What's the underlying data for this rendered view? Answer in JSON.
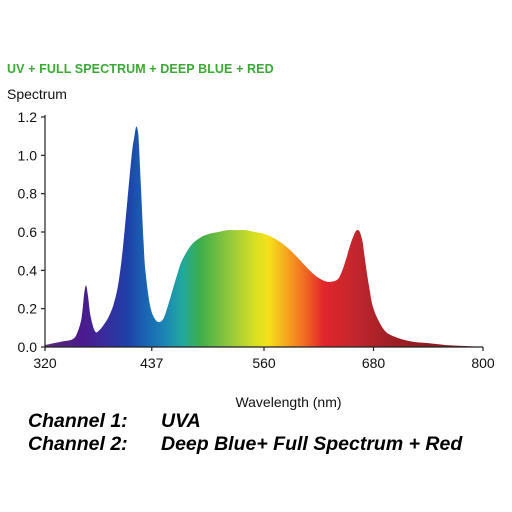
{
  "header": {
    "title": "UV + FULL SPECTRUM + DEEP BLUE + RED",
    "title_color": "#3aaa35"
  },
  "channels": [
    {
      "key": "Channel 1:",
      "value": "UVA"
    },
    {
      "key": "Channel 2:",
      "value": "Deep Blue+ Full Spectrum + Red"
    }
  ],
  "chart_data": {
    "type": "area",
    "title": "UV + FULL SPECTRUM + DEEP BLUE + RED",
    "xlabel": "Wavelength (nm)",
    "ylabel": "Spectrum",
    "xlim": [
      320,
      800
    ],
    "ylim": [
      0,
      1.2
    ],
    "xticks": [
      320,
      437,
      560,
      680,
      800
    ],
    "yticks": [
      0.0,
      0.2,
      0.4,
      0.6,
      0.8,
      1.0,
      1.2
    ],
    "ytick_labels": [
      "0.0",
      "0.2",
      "0.4",
      "0.6",
      "0.8",
      "1.0",
      "1.2"
    ],
    "grid": false,
    "fill": "wavelength-colored spectrum gradient",
    "series": [
      {
        "x": [
          320,
          330,
          340,
          350,
          355,
          360,
          363,
          365,
          367,
          370,
          375,
          380,
          385,
          390,
          395,
          400,
          405,
          410,
          415,
          418,
          420,
          422,
          423,
          425,
          428,
          430,
          435,
          440,
          445,
          450,
          455,
          460,
          465,
          470,
          480,
          490,
          500,
          510,
          520,
          530,
          540,
          550,
          560,
          570,
          580,
          590,
          600,
          610,
          620,
          630,
          640,
          645,
          650,
          655,
          660,
          663,
          665,
          668,
          670,
          675,
          680,
          690,
          700,
          720,
          740,
          760,
          780,
          800
        ],
        "y": [
          0.01,
          0.02,
          0.03,
          0.04,
          0.07,
          0.15,
          0.28,
          0.32,
          0.27,
          0.16,
          0.08,
          0.09,
          0.12,
          0.16,
          0.22,
          0.32,
          0.5,
          0.75,
          1.0,
          1.1,
          1.15,
          1.12,
          1.05,
          0.85,
          0.55,
          0.4,
          0.22,
          0.15,
          0.13,
          0.15,
          0.22,
          0.3,
          0.38,
          0.45,
          0.53,
          0.57,
          0.59,
          0.6,
          0.61,
          0.61,
          0.61,
          0.6,
          0.59,
          0.57,
          0.54,
          0.5,
          0.45,
          0.4,
          0.36,
          0.34,
          0.35,
          0.39,
          0.46,
          0.54,
          0.6,
          0.61,
          0.6,
          0.55,
          0.48,
          0.32,
          0.2,
          0.1,
          0.06,
          0.03,
          0.02,
          0.01,
          0.005,
          0.0
        ]
      }
    ]
  }
}
